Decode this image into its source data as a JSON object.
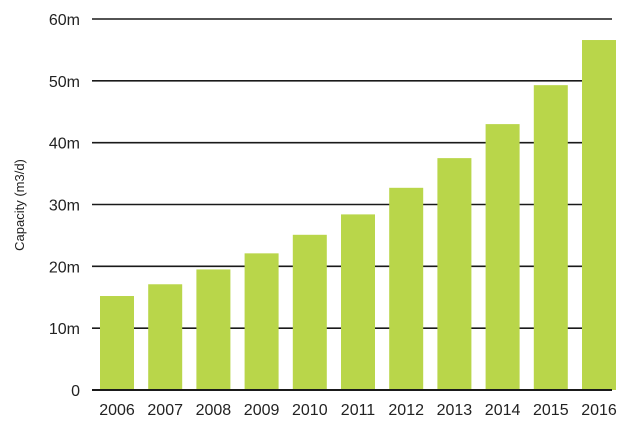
{
  "chart_data": {
    "type": "bar",
    "title": "",
    "xlabel": "",
    "ylabel": "Capacity (m3/d)",
    "categories": [
      "2006",
      "2007",
      "2008",
      "2009",
      "2010",
      "2011",
      "2012",
      "2013",
      "2014",
      "2015",
      "2016"
    ],
    "values": [
      15.2,
      17.1,
      19.5,
      22.1,
      25.1,
      28.4,
      32.7,
      37.5,
      43.0,
      49.3,
      56.6
    ],
    "unit": "m",
    "ylim": [
      0,
      60
    ],
    "yticks": [
      0,
      10,
      20,
      30,
      40,
      50,
      60
    ],
    "ytick_labels": [
      "0",
      "10m",
      "20m",
      "30m",
      "40m",
      "50m",
      "60m"
    ],
    "grid": "horizontal",
    "bar_color": "#b9d64a",
    "grid_color": "#1a1a1a"
  }
}
